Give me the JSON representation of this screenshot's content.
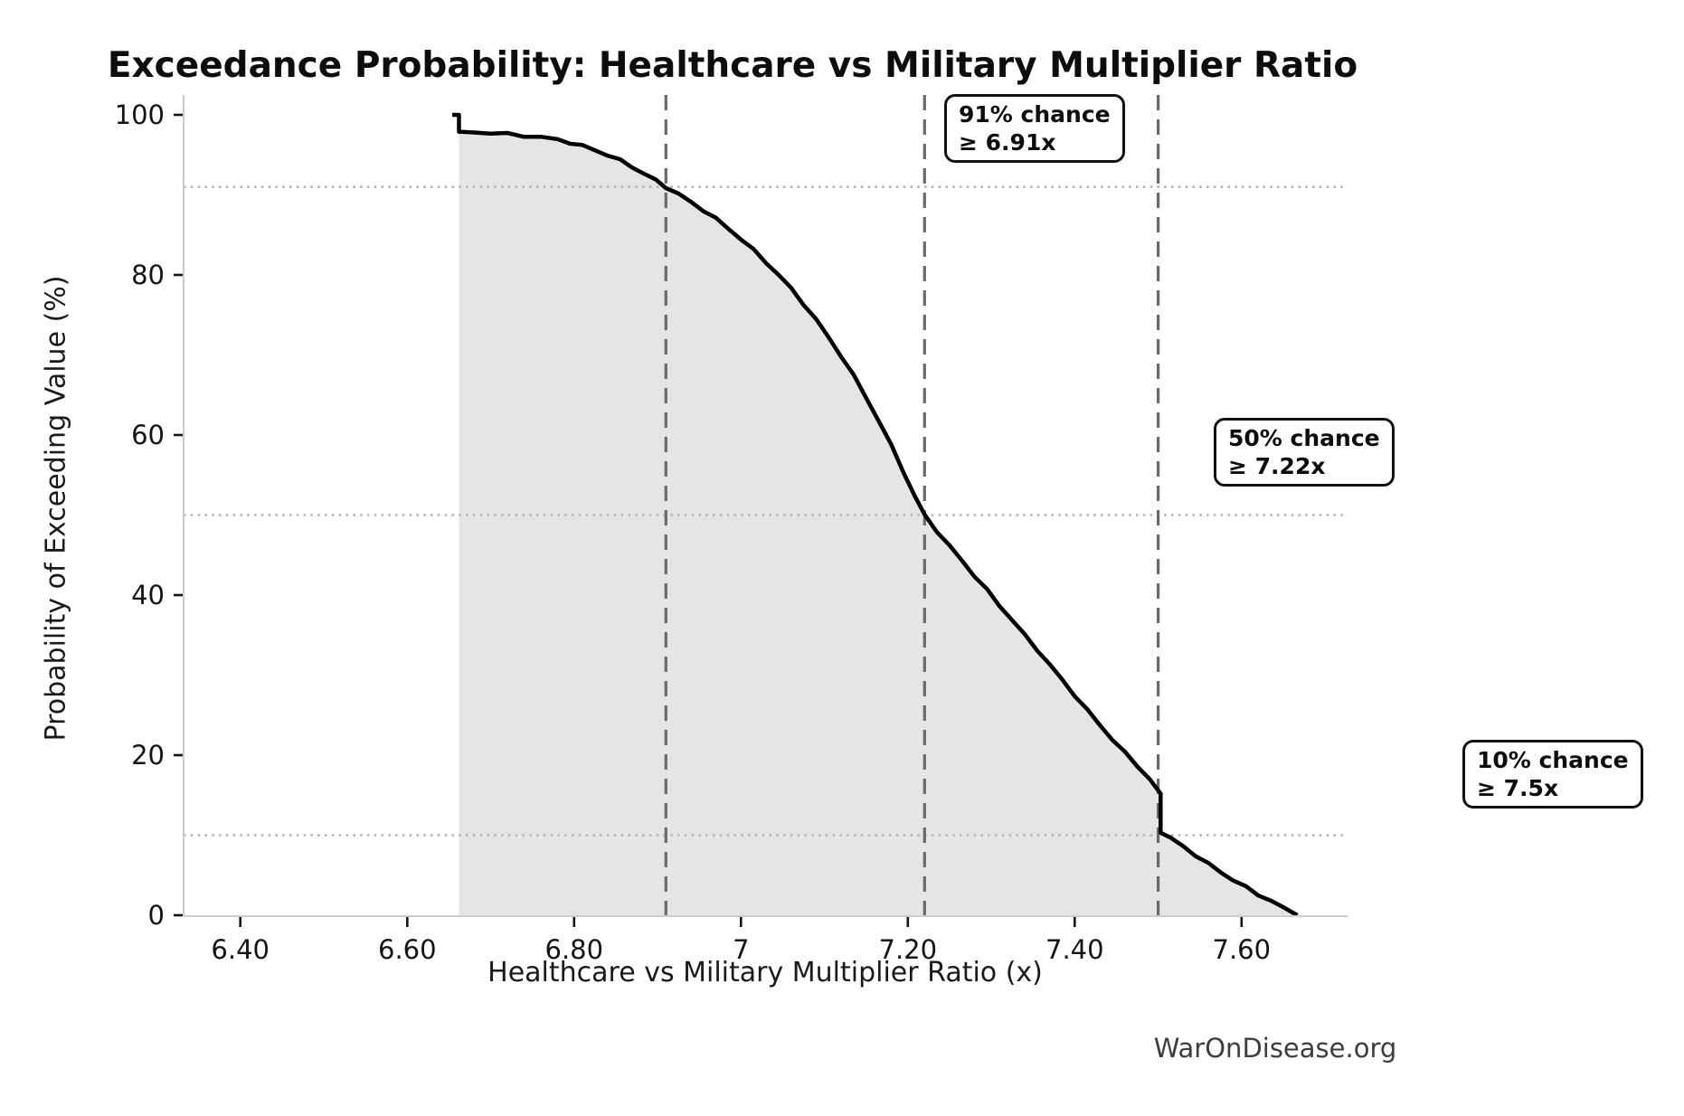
{
  "title": "Exceedance Probability: Healthcare vs Military Multiplier Ratio",
  "watermark": "WarOnDisease.org",
  "chart_data": {
    "type": "line",
    "title": "Exceedance Probability: Healthcare vs Military Multiplier Ratio",
    "xlabel": "Healthcare vs Military Multiplier Ratio (x)",
    "ylabel": "Probability of Exceeding Value (%)",
    "xlim": [
      6.332,
      7.727
    ],
    "ylim": [
      0,
      100
    ],
    "x_ticks": [
      6.4,
      6.6,
      6.8,
      7.0,
      7.2,
      7.4,
      7.6
    ],
    "x_tick_labels": [
      "6.40",
      "6.60",
      "6.80",
      "7",
      "7.20",
      "7.40",
      "7.60"
    ],
    "y_ticks": [
      0,
      20,
      40,
      60,
      80,
      100
    ],
    "y_tick_labels": [
      "0",
      "20",
      "40",
      "60",
      "80",
      "100"
    ],
    "grid": "off",
    "legend": "none",
    "line_color": "#000000",
    "fill_color": "#e5e5e5",
    "reference_line_color_vertical": "#696969",
    "reference_line_color_horizontal": "#b3b3b3",
    "spine_color": "#cccccc",
    "series": [
      {
        "name": "exceedance-curve",
        "points": [
          [
            6.654,
            100
          ],
          [
            6.662,
            100
          ],
          [
            6.662,
            97.9
          ],
          [
            6.68,
            97.8
          ],
          [
            6.7,
            97.7
          ],
          [
            6.72,
            97.6
          ],
          [
            6.74,
            97.4
          ],
          [
            6.76,
            97.2
          ],
          [
            6.78,
            96.9
          ],
          [
            6.795,
            96.55
          ],
          [
            6.81,
            96.1
          ],
          [
            6.825,
            95.6
          ],
          [
            6.84,
            95.0
          ],
          [
            6.855,
            94.3
          ],
          [
            6.87,
            93.5
          ],
          [
            6.885,
            92.6
          ],
          [
            6.898,
            91.8
          ],
          [
            6.91,
            91.0
          ],
          [
            6.925,
            90.1
          ],
          [
            6.94,
            89.1
          ],
          [
            6.955,
            88.1
          ],
          [
            6.97,
            87.0
          ],
          [
            6.985,
            85.8
          ],
          [
            7.0,
            84.5
          ],
          [
            7.015,
            83.1
          ],
          [
            7.03,
            81.6
          ],
          [
            7.045,
            80.0
          ],
          [
            7.06,
            78.3
          ],
          [
            7.075,
            76.4
          ],
          [
            7.09,
            74.4
          ],
          [
            7.105,
            72.2
          ],
          [
            7.12,
            69.9
          ],
          [
            7.135,
            67.4
          ],
          [
            7.15,
            64.7
          ],
          [
            7.165,
            61.8
          ],
          [
            7.18,
            58.7
          ],
          [
            7.195,
            55.4
          ],
          [
            7.208,
            52.4
          ],
          [
            7.22,
            50.0
          ],
          [
            7.235,
            48.0
          ],
          [
            7.25,
            46.1
          ],
          [
            7.265,
            44.3
          ],
          [
            7.28,
            42.4
          ],
          [
            7.295,
            40.6
          ],
          [
            7.31,
            38.7
          ],
          [
            7.325,
            36.9
          ],
          [
            7.34,
            35.0
          ],
          [
            7.355,
            33.2
          ],
          [
            7.37,
            31.3
          ],
          [
            7.385,
            29.4
          ],
          [
            7.4,
            27.5
          ],
          [
            7.415,
            25.6
          ],
          [
            7.43,
            23.8
          ],
          [
            7.445,
            22.0
          ],
          [
            7.46,
            20.3
          ],
          [
            7.475,
            18.7
          ],
          [
            7.49,
            17.0
          ],
          [
            7.503,
            15.2
          ],
          [
            7.503,
            10.3
          ],
          [
            7.515,
            9.6
          ],
          [
            7.53,
            8.6
          ],
          [
            7.545,
            7.5
          ],
          [
            7.56,
            6.4
          ],
          [
            7.575,
            5.4
          ],
          [
            7.59,
            4.4
          ],
          [
            7.605,
            3.5
          ],
          [
            7.62,
            2.6
          ],
          [
            7.635,
            1.8
          ],
          [
            7.65,
            1.0
          ],
          [
            7.66,
            0.4
          ],
          [
            7.667,
            0.0
          ]
        ]
      }
    ],
    "reference_lines": {
      "vertical_x": [
        6.91,
        7.22,
        7.5
      ],
      "horizontal_p": [
        91,
        50,
        10
      ]
    },
    "annotations": [
      {
        "line1": "91% chance",
        "line2": "≥ 6.91x",
        "x": 6.91,
        "p": 91
      },
      {
        "line1": "50% chance",
        "line2": "≥ 7.22x",
        "x": 7.22,
        "p": 50
      },
      {
        "line1": "10% chance",
        "line2": "≥ 7.5x",
        "x": 7.5,
        "p": 10
      }
    ]
  }
}
